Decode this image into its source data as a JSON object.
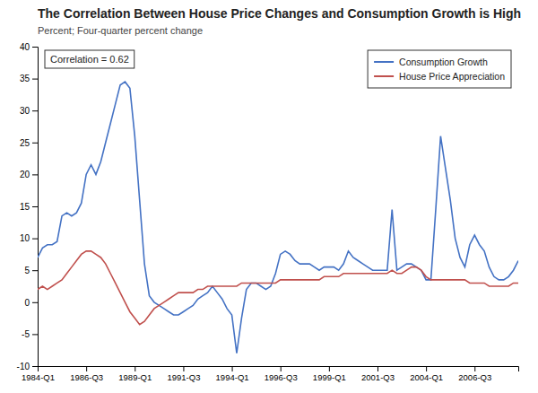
{
  "chart_data": {
    "type": "line",
    "title": "The Correlation Between House Price Changes and Consumption Growth is High",
    "subtitle": "Percent; Four-quarter percent change",
    "annotation": "Correlation = 0.62",
    "x": [
      1984,
      1984.25,
      1984.5,
      1984.75,
      1985,
      1985.25,
      1985.5,
      1985.75,
      1986,
      1986.25,
      1986.5,
      1986.75,
      1987,
      1987.25,
      1987.5,
      1987.75,
      1988,
      1988.25,
      1988.5,
      1988.75,
      1989,
      1989.25,
      1989.5,
      1989.75,
      1990,
      1990.25,
      1990.5,
      1990.75,
      1991,
      1991.25,
      1991.5,
      1991.75,
      1992,
      1992.25,
      1992.5,
      1992.75,
      1993,
      1993.25,
      1993.5,
      1993.75,
      1994,
      1994.25,
      1994.5,
      1994.75,
      1995,
      1995.25,
      1995.5,
      1995.75,
      1996,
      1996.25,
      1996.5,
      1996.75,
      1997,
      1997.25,
      1997.5,
      1997.75,
      1998,
      1998.25,
      1998.5,
      1998.75,
      1999,
      1999.25,
      1999.5,
      1999.75,
      2000,
      2000.25,
      2000.5,
      2000.75,
      2001,
      2001.25,
      2001.5,
      2001.75,
      2002,
      2002.25,
      2002.5,
      2002.75,
      2003,
      2003.25,
      2003.5,
      2003.75,
      2004,
      2004.25,
      2004.5,
      2004.75,
      2005,
      2005.25,
      2005.5,
      2005.75,
      2006,
      2006.25,
      2006.5,
      2006.75,
      2007,
      2007.25,
      2007.5,
      2007.75,
      2008,
      2008.25,
      2008.5,
      2008.75
    ],
    "xlim": [
      1984.0,
      2008.75
    ],
    "xticks": [
      {
        "value": 1984.0,
        "label": "1984-Q1"
      },
      {
        "value": 1986.5,
        "label": "1986-Q3"
      },
      {
        "value": 1989.0,
        "label": "1989-Q1"
      },
      {
        "value": 1991.5,
        "label": "1991-Q3"
      },
      {
        "value": 1994.0,
        "label": "1994-Q1"
      },
      {
        "value": 1996.5,
        "label": "1996-Q3"
      },
      {
        "value": 1999.0,
        "label": "1999-Q1"
      },
      {
        "value": 2001.5,
        "label": "2001-Q3"
      },
      {
        "value": 2004.0,
        "label": "2004-Q1"
      },
      {
        "value": 2006.5,
        "label": "2006-Q3"
      }
    ],
    "ylim": [
      -10,
      40
    ],
    "yticks": [
      -10,
      -5,
      0,
      5,
      10,
      15,
      20,
      25,
      30,
      35,
      40
    ],
    "grid": false,
    "legend": "upper right",
    "series": [
      {
        "name": "Consumption Growth",
        "color": "#4472C4",
        "values": [
          7.0,
          8.5,
          9.0,
          9.0,
          9.5,
          13.5,
          14.0,
          13.5,
          14.0,
          15.5,
          20.0,
          21.5,
          20.0,
          22.0,
          25.0,
          28.0,
          31.0,
          34.0,
          34.5,
          33.5,
          26.0,
          16.0,
          6.0,
          1.0,
          0.0,
          -0.5,
          -1.0,
          -1.5,
          -2.0,
          -2.0,
          -1.5,
          -1.0,
          -0.5,
          0.5,
          1.0,
          1.5,
          2.5,
          1.5,
          0.5,
          -1.0,
          -2.0,
          -8.0,
          -2.5,
          2.0,
          3.0,
          3.0,
          2.5,
          2.0,
          2.5,
          4.5,
          7.5,
          8.0,
          7.5,
          6.5,
          6.0,
          6.0,
          6.0,
          5.5,
          5.0,
          5.5,
          5.5,
          5.5,
          5.0,
          6.0,
          8.0,
          7.0,
          6.5,
          6.0,
          5.5,
          5.0,
          5.0,
          5.0,
          5.0,
          14.5,
          5.0,
          5.5,
          6.0,
          6.0,
          5.5,
          5.0,
          3.5,
          3.5,
          14.5,
          26.0,
          21.0,
          16.0,
          10.0,
          7.0,
          5.5,
          9.0,
          10.5,
          9.0,
          8.0,
          5.5,
          4.0,
          3.5,
          3.5,
          4.0,
          5.0,
          6.5
        ]
      },
      {
        "name": "House Price Appreciation",
        "color": "#C0504D",
        "values": [
          2.0,
          2.5,
          2.0,
          2.5,
          3.0,
          3.5,
          4.5,
          5.5,
          6.5,
          7.5,
          8.0,
          8.0,
          7.5,
          7.0,
          6.0,
          4.5,
          3.0,
          1.5,
          0.0,
          -1.5,
          -2.5,
          -3.5,
          -3.0,
          -2.0,
          -1.0,
          -0.5,
          0.0,
          0.5,
          1.0,
          1.5,
          1.5,
          1.5,
          1.5,
          2.0,
          2.0,
          2.5,
          2.5,
          2.5,
          2.5,
          2.5,
          2.5,
          2.5,
          3.0,
          3.0,
          3.0,
          3.0,
          3.0,
          3.0,
          3.0,
          3.0,
          3.5,
          3.5,
          3.5,
          3.5,
          3.5,
          3.5,
          3.5,
          3.5,
          3.5,
          4.0,
          4.0,
          4.0,
          4.0,
          4.5,
          4.5,
          4.5,
          4.5,
          4.5,
          4.5,
          4.5,
          4.5,
          4.5,
          4.5,
          5.0,
          4.5,
          4.5,
          5.0,
          5.5,
          5.5,
          5.0,
          4.0,
          3.5,
          3.5,
          3.5,
          3.5,
          3.5,
          3.5,
          3.5,
          3.5,
          3.0,
          3.0,
          3.0,
          3.0,
          2.5,
          2.5,
          2.5,
          2.5,
          2.5,
          3.0,
          3.0
        ]
      }
    ]
  }
}
